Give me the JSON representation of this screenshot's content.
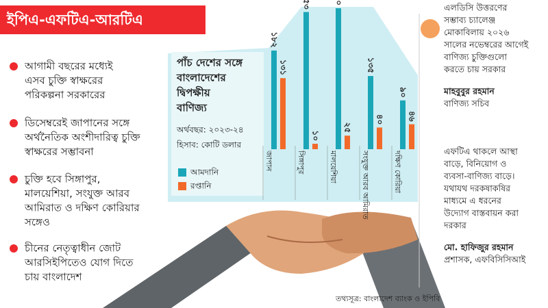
{
  "header": {
    "title": "ইপিএ-এফটিএ-আরটিএ"
  },
  "bullets": [
    [
      "আগামী বছরের মধ্যেই",
      "এসব চুক্তি স্বাক্ষরের",
      "পরিকল্পনা সরকারের"
    ],
    [
      "ডিসেম্বরেই জাপানের সঙ্গে",
      "অর্থনৈতিক অংশীদারিত্ব চুক্তি",
      "স্বাক্ষরের সম্ভাবনা"
    ],
    [
      "চুক্তি হবে সিঙ্গাপুর,",
      "মালয়েশিয়া, সংযুক্ত আরব",
      "আমিরাত ও দক্ষিণ কোরিয়ার",
      "সঙ্গেও"
    ],
    [
      "চীনের নেতৃত্বাধীন জোট",
      "আরসিইপিতেও যোগ দিতে",
      "চায় বাংলাদেশ"
    ]
  ],
  "chart_data": {
    "type": "bar",
    "title": [
      "পাঁচ দেশের সঙ্গে",
      "বাংলাদেশের",
      "দ্বিপক্ষীয়",
      "বাণিজ্য"
    ],
    "subtitle": [
      "অর্থবছর: ২০২৩-২৪",
      "হিসাব: কোটি ডলার"
    ],
    "categories": [
      "জাপান",
      "সিঙ্গাপুর",
      "মালয়েশিয়া",
      "সংযুক্ত আরব আমিরাত",
      "দক্ষিণ কোরিয়া"
    ],
    "series": [
      {
        "name": "আমদানি",
        "color": "#1ba6b8",
        "values": [
          182,
          253,
          260,
          135,
          90
        ],
        "value_labels": [
          "১৮২",
          "২৫৩",
          "২৬০",
          "১৩৫",
          "৯০"
        ]
      },
      {
        "name": "রপ্তানি",
        "color": "#f26a2a",
        "values": [
          131,
          10,
          25,
          40,
          46
        ],
        "value_labels": [
          "১৩১",
          "১০",
          "২৫",
          "৪০",
          "৪৬"
        ]
      }
    ]
  },
  "quotes": [
    {
      "text": [
        "এলডিসি উত্তরণের",
        "সম্ভাব্য চ্যালেঞ্জ",
        "মোকাবিলায় ২০২৬",
        "সালের নভেম্বরের আগেই",
        "বাণিজ্য চুক্তিগুলো",
        "করতে চায় সরকার"
      ],
      "name": "মাহবুবুর রহমান",
      "role": "বাণিজ্য সচিব"
    },
    {
      "text": [
        "এফটিএ থাকলে আস্থা",
        "বাড়ে, বিনিয়োগ ও",
        "ব্যবসা-বাণিজ্য বাড়ে।",
        "যথাযথ দরকষাকষির",
        "মাধ্যমে এ ধরনের",
        "উদ্যোগ বাস্তবায়ন করা",
        "দরকার"
      ],
      "name": "মো. হাফিজুর রহমান",
      "role": "প্রশাসক, এফবিসিসিআই"
    }
  ],
  "source": "তথ্যসূত্র: বাংলাদেশ ব্যাংক ও ইপিবি"
}
